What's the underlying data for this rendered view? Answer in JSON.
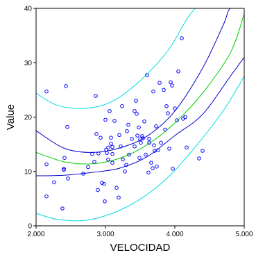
{
  "chart_data": {
    "type": "scatter",
    "title": "",
    "xlabel": "VELOCIDAD",
    "ylabel": "Value",
    "xlim": [
      2.0,
      5.0
    ],
    "ylim": [
      0,
      40
    ],
    "x_ticks": [
      2.0,
      3.0,
      4.0,
      5.0
    ],
    "x_tick_labels": [
      "2.000",
      "3.000",
      "4.000",
      "5.000"
    ],
    "y_ticks": [
      0,
      10,
      20,
      30,
      40
    ],
    "y_tick_labels": [
      "0",
      "10",
      "20",
      "30",
      "40"
    ],
    "grid": false,
    "legend": "none",
    "colors": {
      "points": "#0000ff",
      "fit": "#00cc00",
      "confidence_band": "#0000cc",
      "prediction_band": "#00dddd",
      "axis": "#000000"
    },
    "series": [
      {
        "type": "scatter",
        "marker": "open-circle",
        "x": [
          2.15,
          2.15,
          2.15,
          2.26,
          2.38,
          2.4,
          2.4,
          2.41,
          2.43,
          2.45,
          2.46,
          2.68,
          2.75,
          2.81,
          2.84,
          2.86,
          2.87,
          2.89,
          2.9,
          2.93,
          2.95,
          2.98,
          2.99,
          3.0,
          3.01,
          3.02,
          3.04,
          3.04,
          3.06,
          3.08,
          3.08,
          3.1,
          3.1,
          3.1,
          3.13,
          3.16,
          3.19,
          3.2,
          3.22,
          3.24,
          3.25,
          3.28,
          3.3,
          3.31,
          3.33,
          3.34,
          3.38,
          3.42,
          3.42,
          3.44,
          3.45,
          3.46,
          3.48,
          3.49,
          3.5,
          3.51,
          3.53,
          3.54,
          3.56,
          3.58,
          3.6,
          3.62,
          3.63,
          3.63,
          3.66,
          3.68,
          3.69,
          3.7,
          3.71,
          3.73,
          3.74,
          3.76,
          3.78,
          3.8,
          3.84,
          3.86,
          3.88,
          3.9,
          3.92,
          3.94,
          3.96,
          3.97,
          4.0,
          4.03,
          4.05,
          4.1,
          4.12,
          4.15,
          4.17,
          4.35,
          4.4
        ],
        "y": [
          24.7,
          5.4,
          11.3,
          8.0,
          3.2,
          10.3,
          10.5,
          12.5,
          25.7,
          18.2,
          8.7,
          9.6,
          10.8,
          13.2,
          11.8,
          23.9,
          16.9,
          6.6,
          13.3,
          16.2,
          7.9,
          7.7,
          4.5,
          19.5,
          14.0,
          13.4,
          14.4,
          12.2,
          21.1,
          16.2,
          15.1,
          11.6,
          13.2,
          14.5,
          19.3,
          7.0,
          5.2,
          16.7,
          14.6,
          22.0,
          12.2,
          10.0,
          11.2,
          17.4,
          18.6,
          13.1,
          16.0,
          21.1,
          14.6,
          23.0,
          20.6,
          16.6,
          18.1,
          12.5,
          15.9,
          15.3,
          16.5,
          16.1,
          19.2,
          13.1,
          27.7,
          9.8,
          15.3,
          16.0,
          11.6,
          10.6,
          24.7,
          14.8,
          13.8,
          18.3,
          10.9,
          13.9,
          26.3,
          15.3,
          25.0,
          17.7,
          22.0,
          20.7,
          14.2,
          26.4,
          25.8,
          10.5,
          21.6,
          19.4,
          28.4,
          34.5,
          19.7,
          20.0,
          14.4,
          12.4,
          13.8
        ]
      },
      {
        "type": "line",
        "role": "fit",
        "x": [
          2.0,
          2.4,
          2.8,
          3.2,
          3.6,
          4.0,
          4.4,
          4.8,
          5.0
        ],
        "y": [
          13.5,
          11.8,
          11.4,
          12.4,
          14.9,
          18.9,
          24.4,
          31.8,
          39.0
        ]
      },
      {
        "type": "line",
        "role": "confidence-upper",
        "x": [
          2.0,
          2.4,
          2.8,
          3.2,
          3.6,
          4.0,
          4.4,
          4.7,
          4.8,
          5.0
        ],
        "y": [
          17.5,
          14.3,
          13.5,
          14.3,
          16.5,
          21.1,
          29.0,
          37.0,
          40.0,
          40.0
        ]
      },
      {
        "type": "line",
        "role": "confidence-lower",
        "x": [
          2.0,
          2.4,
          2.8,
          3.2,
          3.6,
          4.0,
          4.4,
          4.8,
          5.0
        ],
        "y": [
          9.2,
          9.3,
          9.8,
          10.6,
          12.7,
          16.6,
          20.5,
          27.5,
          31.0
        ]
      },
      {
        "type": "line",
        "role": "prediction-upper",
        "x": [
          2.0,
          2.3,
          2.7,
          3.1,
          3.5,
          3.9,
          4.3,
          4.7,
          5.0
        ],
        "y": [
          24.4,
          22.2,
          21.6,
          22.9,
          26.7,
          32.2,
          40.0,
          40.0,
          40.0
        ]
      },
      {
        "type": "line",
        "role": "prediction-lower",
        "x": [
          2.0,
          2.3,
          2.7,
          3.1,
          3.5,
          3.9,
          4.3,
          4.7,
          5.0
        ],
        "y": [
          2.3,
          1.2,
          1.0,
          2.3,
          4.9,
          8.9,
          14.6,
          21.2,
          27.5
        ]
      }
    ]
  }
}
